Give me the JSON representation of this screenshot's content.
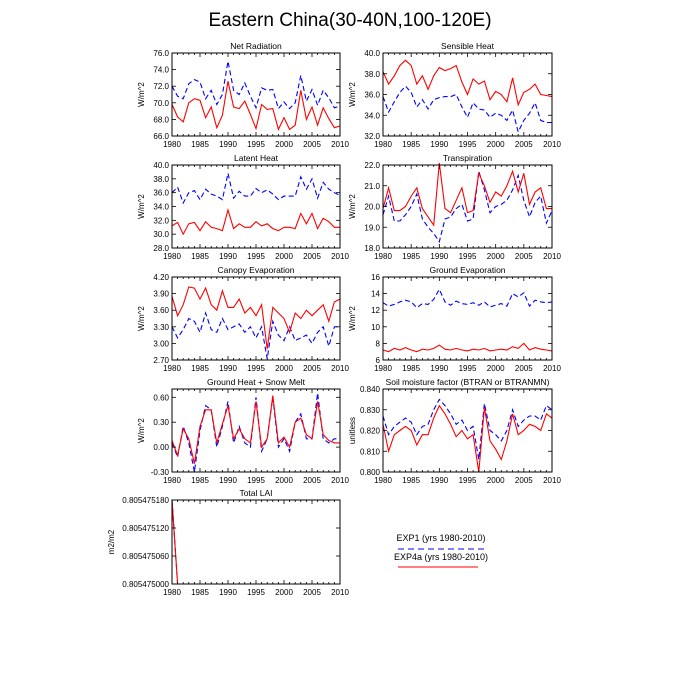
{
  "title": "Eastern China(30-40N,100-120E)",
  "colors": {
    "exp1": "#0000ff",
    "exp4a": "#ff0000",
    "axis": "#000000"
  },
  "legend": {
    "exp1_label": "EXP1 (yrs 1980-2010)",
    "exp4a_label": "EXP4a (yrs 1980-2010)",
    "exp1_style": "dashed blue",
    "exp4a_style": "solid red"
  },
  "chart_data": [
    {
      "type": "line",
      "title": "Net Radiation",
      "ylabel": "W/m^2",
      "xlim": [
        1980,
        2010
      ],
      "ylim": [
        66,
        76
      ],
      "xticks": [
        1980,
        1985,
        1990,
        1995,
        2000,
        2005,
        2010
      ],
      "yticks": [
        66,
        68,
        70,
        72,
        74,
        76
      ],
      "ytick_labels": [
        "66.0",
        "68.0",
        "70.0",
        "72.0",
        "74.0",
        "76.0"
      ],
      "x": [
        1980,
        1981,
        1982,
        1983,
        1984,
        1985,
        1986,
        1987,
        1988,
        1989,
        1990,
        1991,
        1992,
        1993,
        1994,
        1995,
        1996,
        1997,
        1998,
        1999,
        2000,
        2001,
        2002,
        2003,
        2004,
        2005,
        2006,
        2007,
        2008,
        2009,
        2010
      ],
      "series": [
        {
          "name": "EXP1",
          "values": [
            72.0,
            70.8,
            70.5,
            72.3,
            72.8,
            72.5,
            70.5,
            71.5,
            69.8,
            71.0,
            75.0,
            71.5,
            71.0,
            72.4,
            70.8,
            69.4,
            71.8,
            71.5,
            71.6,
            69.3,
            70.1,
            69.3,
            70.0,
            73.3,
            70.2,
            71.6,
            69.7,
            71.5,
            70.6,
            69.4,
            69.6
          ]
        },
        {
          "name": "EXP4a",
          "values": [
            69.8,
            68.3,
            67.7,
            70.0,
            70.5,
            70.3,
            68.2,
            69.5,
            67.0,
            68.5,
            72.6,
            69.5,
            69.3,
            70.2,
            68.6,
            66.9,
            69.8,
            69.2,
            69.3,
            66.8,
            68.2,
            66.8,
            67.3,
            71.5,
            68.0,
            69.5,
            67.3,
            69.4,
            68.1,
            67.0,
            67.2
          ]
        }
      ]
    },
    {
      "type": "line",
      "title": "Sensible Heat",
      "ylabel": "W/m^2",
      "xlim": [
        1980,
        2010
      ],
      "ylim": [
        32,
        40
      ],
      "xticks": [
        1980,
        1985,
        1990,
        1995,
        2000,
        2005,
        2010
      ],
      "yticks": [
        32,
        34,
        36,
        38,
        40
      ],
      "ytick_labels": [
        "32.0",
        "34.0",
        "36.0",
        "38.0",
        "40.0"
      ],
      "x": [
        1980,
        1981,
        1982,
        1983,
        1984,
        1985,
        1986,
        1987,
        1988,
        1989,
        1990,
        1991,
        1992,
        1993,
        1994,
        1995,
        1996,
        1997,
        1998,
        1999,
        2000,
        2001,
        2002,
        2003,
        2004,
        2005,
        2006,
        2007,
        2008,
        2009,
        2010
      ],
      "series": [
        {
          "name": "EXP1",
          "values": [
            35.8,
            34.3,
            35.3,
            36.2,
            36.8,
            36.2,
            34.8,
            35.5,
            34.6,
            35.5,
            35.7,
            35.8,
            35.8,
            36.0,
            34.8,
            33.8,
            35.2,
            34.6,
            34.5,
            33.8,
            34.2,
            34.0,
            33.5,
            34.5,
            32.4,
            33.5,
            34.2,
            35.2,
            33.5,
            33.3,
            33.3
          ]
        },
        {
          "name": "EXP4a",
          "values": [
            38.2,
            37.0,
            37.8,
            38.8,
            39.3,
            38.8,
            37.0,
            37.8,
            36.5,
            37.8,
            38.6,
            38.3,
            38.5,
            38.8,
            37.2,
            36.0,
            37.5,
            37.0,
            37.3,
            35.5,
            36.3,
            36.0,
            35.3,
            37.6,
            35.0,
            36.2,
            36.5,
            37.0,
            36.0,
            35.9,
            35.8
          ]
        }
      ]
    },
    {
      "type": "line",
      "title": "Latent Heat",
      "ylabel": "W/m^2",
      "xlim": [
        1980,
        2010
      ],
      "ylim": [
        28,
        40
      ],
      "xticks": [
        1980,
        1985,
        1990,
        1995,
        2000,
        2005,
        2010
      ],
      "yticks": [
        28,
        30,
        32,
        34,
        36,
        38,
        40
      ],
      "ytick_labels": [
        "28.0",
        "30.0",
        "32.0",
        "34.0",
        "36.0",
        "38.0",
        "40.0"
      ],
      "x": [
        1980,
        1981,
        1982,
        1983,
        1984,
        1985,
        1986,
        1987,
        1988,
        1989,
        1990,
        1991,
        1992,
        1993,
        1994,
        1995,
        1996,
        1997,
        1998,
        1999,
        2000,
        2001,
        2002,
        2003,
        2004,
        2005,
        2006,
        2007,
        2008,
        2009,
        2010
      ],
      "series": [
        {
          "name": "EXP1",
          "values": [
            36.0,
            36.8,
            34.5,
            36.0,
            36.3,
            35.0,
            36.5,
            35.8,
            35.5,
            35.0,
            38.8,
            35.2,
            36.2,
            35.5,
            35.5,
            36.6,
            36.0,
            36.4,
            35.8,
            35.0,
            35.5,
            35.5,
            35.5,
            38.3,
            36.5,
            38.0,
            35.2,
            37.5,
            36.5,
            36.0,
            35.6
          ]
        },
        {
          "name": "EXP4a",
          "values": [
            31.2,
            31.7,
            30.0,
            31.5,
            31.7,
            30.5,
            31.8,
            31.0,
            30.8,
            30.5,
            33.5,
            30.8,
            31.5,
            31.0,
            31.0,
            31.8,
            31.2,
            31.5,
            30.8,
            30.5,
            31.0,
            31.0,
            30.8,
            33.0,
            31.5,
            33.0,
            30.8,
            32.3,
            31.8,
            31.0,
            31.0
          ]
        }
      ]
    },
    {
      "type": "line",
      "title": "Transpiration",
      "ylabel": "W/m^2",
      "xlim": [
        1980,
        2010
      ],
      "ylim": [
        18,
        22
      ],
      "xticks": [
        1980,
        1985,
        1990,
        1995,
        2000,
        2005,
        2010
      ],
      "yticks": [
        18,
        19,
        20,
        21,
        22
      ],
      "ytick_labels": [
        "18.0",
        "19.0",
        "20.0",
        "21.0",
        "22.0"
      ],
      "x": [
        1980,
        1981,
        1982,
        1983,
        1984,
        1985,
        1986,
        1987,
        1988,
        1989,
        1990,
        1991,
        1992,
        1993,
        1994,
        1995,
        1996,
        1997,
        1998,
        1999,
        2000,
        2001,
        2002,
        2003,
        2004,
        2005,
        2006,
        2007,
        2008,
        2009,
        2010
      ],
      "series": [
        {
          "name": "EXP1",
          "values": [
            19.6,
            20.5,
            19.3,
            19.3,
            19.6,
            20.0,
            20.6,
            19.4,
            19.0,
            18.7,
            18.3,
            19.4,
            19.5,
            19.9,
            20.1,
            19.3,
            19.4,
            21.7,
            20.8,
            19.7,
            20.0,
            20.1,
            20.3,
            20.8,
            21.5,
            20.3,
            19.5,
            20.2,
            20.5,
            19.2,
            19.8
          ]
        },
        {
          "name": "EXP4a",
          "values": [
            19.9,
            20.9,
            19.8,
            19.8,
            20.0,
            20.5,
            20.9,
            19.9,
            19.5,
            19.1,
            22.1,
            19.9,
            19.7,
            20.3,
            20.9,
            19.7,
            19.8,
            21.6,
            21.0,
            20.2,
            20.7,
            20.5,
            21.0,
            21.7,
            20.7,
            21.6,
            20.1,
            20.7,
            20.9,
            19.9,
            19.9
          ]
        }
      ]
    },
    {
      "type": "line",
      "title": "Canopy Evaporation",
      "ylabel": "W/m^2",
      "xlim": [
        1980,
        2010
      ],
      "ylim": [
        2.7,
        4.2
      ],
      "xticks": [
        1980,
        1985,
        1990,
        1995,
        2000,
        2005,
        2010
      ],
      "yticks": [
        2.7,
        3.0,
        3.3,
        3.6,
        3.9,
        4.2
      ],
      "ytick_labels": [
        "2.70",
        "3.00",
        "3.30",
        "3.60",
        "3.90",
        "4.20"
      ],
      "x": [
        1980,
        1981,
        1982,
        1983,
        1984,
        1985,
        1986,
        1987,
        1988,
        1989,
        1990,
        1991,
        1992,
        1993,
        1994,
        1995,
        1996,
        1997,
        1998,
        1999,
        2000,
        2001,
        2002,
        2003,
        2004,
        2005,
        2006,
        2007,
        2008,
        2009,
        2010
      ],
      "series": [
        {
          "name": "EXP1",
          "values": [
            3.3,
            3.1,
            3.25,
            3.45,
            3.4,
            3.2,
            3.55,
            3.25,
            3.2,
            3.45,
            3.25,
            3.3,
            3.35,
            3.2,
            3.3,
            3.1,
            3.3,
            2.72,
            3.4,
            3.15,
            3.05,
            3.3,
            3.05,
            3.1,
            3.15,
            3.0,
            3.2,
            3.3,
            2.95,
            3.3,
            3.3
          ]
        },
        {
          "name": "EXP4a",
          "values": [
            3.85,
            3.5,
            3.7,
            4.02,
            4.0,
            3.8,
            4.0,
            3.7,
            3.6,
            3.95,
            3.65,
            3.65,
            3.8,
            3.55,
            3.65,
            3.5,
            3.7,
            2.9,
            3.65,
            3.55,
            3.45,
            3.2,
            3.55,
            3.45,
            3.6,
            3.5,
            3.6,
            3.7,
            3.4,
            3.75,
            3.8
          ]
        }
      ]
    },
    {
      "type": "line",
      "title": "Ground Evaporation",
      "ylabel": "W/m^2",
      "xlim": [
        1980,
        2010
      ],
      "ylim": [
        6,
        16
      ],
      "xticks": [
        1980,
        1985,
        1990,
        1995,
        2000,
        2005,
        2010
      ],
      "yticks": [
        6,
        8,
        10,
        12,
        14,
        16
      ],
      "ytick_labels": [
        "6",
        "8",
        "10",
        "12",
        "14",
        "16"
      ],
      "x": [
        1980,
        1981,
        1982,
        1983,
        1984,
        1985,
        1986,
        1987,
        1988,
        1989,
        1990,
        1991,
        1992,
        1993,
        1994,
        1995,
        1996,
        1997,
        1998,
        1999,
        2000,
        2001,
        2002,
        2003,
        2004,
        2005,
        2006,
        2007,
        2008,
        2009,
        2010
      ],
      "series": [
        {
          "name": "EXP1",
          "values": [
            12.9,
            12.5,
            12.7,
            13.0,
            13.2,
            13.0,
            12.3,
            12.8,
            12.7,
            13.3,
            14.5,
            13.0,
            12.6,
            13.1,
            12.8,
            12.7,
            12.9,
            12.6,
            13.0,
            12.4,
            12.6,
            12.8,
            12.5,
            14.0,
            13.6,
            14.1,
            12.5,
            13.2,
            13.0,
            12.9,
            13.0
          ]
        },
        {
          "name": "EXP4a",
          "values": [
            7.2,
            7.0,
            7.4,
            7.2,
            7.5,
            7.2,
            7.0,
            7.3,
            7.2,
            7.4,
            7.8,
            7.3,
            7.2,
            7.4,
            7.2,
            7.1,
            7.3,
            7.2,
            7.4,
            7.1,
            7.2,
            7.3,
            7.2,
            7.6,
            7.4,
            8.0,
            7.2,
            7.5,
            7.3,
            7.2,
            7.1
          ]
        }
      ]
    },
    {
      "type": "line",
      "title": "Ground Heat + Snow Melt",
      "ylabel": "W/m^2",
      "xlim": [
        1980,
        2010
      ],
      "ylim": [
        -0.3,
        0.7
      ],
      "xticks": [
        1980,
        1985,
        1990,
        1995,
        2000,
        2005,
        2010
      ],
      "yticks": [
        -0.3,
        0.0,
        0.3,
        0.6
      ],
      "ytick_labels": [
        "-0.30",
        "0.00",
        "0.30",
        "0.60"
      ],
      "x": [
        1980,
        1981,
        1982,
        1983,
        1984,
        1985,
        1986,
        1987,
        1988,
        1989,
        1990,
        1991,
        1992,
        1993,
        1994,
        1995,
        1996,
        1997,
        1998,
        1999,
        2000,
        2001,
        2002,
        2003,
        2004,
        2005,
        2006,
        2007,
        2008,
        2009,
        2010
      ],
      "series": [
        {
          "name": "EXP1",
          "values": [
            0.05,
            -0.12,
            0.25,
            0.05,
            -0.3,
            0.2,
            0.5,
            0.45,
            0.0,
            0.25,
            0.55,
            0.05,
            0.25,
            0.05,
            0.0,
            0.6,
            -0.05,
            0.1,
            0.6,
            0.0,
            0.1,
            -0.05,
            0.3,
            0.4,
            0.1,
            0.1,
            0.65,
            0.1,
            0.05,
            0.1,
            0.1
          ]
        },
        {
          "name": "EXP4a",
          "values": [
            0.08,
            -0.1,
            0.22,
            0.1,
            -0.2,
            0.25,
            0.45,
            0.45,
            0.05,
            0.28,
            0.5,
            0.1,
            0.22,
            0.1,
            0.05,
            0.55,
            0.0,
            0.1,
            0.62,
            0.05,
            0.12,
            0.0,
            0.3,
            0.35,
            0.15,
            0.1,
            0.55,
            0.15,
            0.08,
            0.05,
            0.05
          ]
        }
      ]
    },
    {
      "type": "line",
      "title": "Soil moisture factor (BTRAN or BTRANMN)",
      "ylabel": "unitless",
      "xlim": [
        1980,
        2010
      ],
      "ylim": [
        0.8,
        0.84
      ],
      "xticks": [
        1980,
        1985,
        1990,
        1995,
        2000,
        2005,
        2010
      ],
      "yticks": [
        0.8,
        0.81,
        0.82,
        0.83,
        0.84
      ],
      "ytick_labels": [
        "0.800",
        "0.810",
        "0.820",
        "0.830",
        "0.840"
      ],
      "x": [
        1980,
        1981,
        1982,
        1983,
        1984,
        1985,
        1986,
        1987,
        1988,
        1989,
        1990,
        1991,
        1992,
        1993,
        1994,
        1995,
        1996,
        1997,
        1998,
        1999,
        2000,
        2001,
        2002,
        2003,
        2004,
        2005,
        2006,
        2007,
        2008,
        2009,
        2010
      ],
      "series": [
        {
          "name": "EXP1",
          "values": [
            0.827,
            0.818,
            0.822,
            0.824,
            0.826,
            0.824,
            0.818,
            0.822,
            0.823,
            0.83,
            0.835,
            0.832,
            0.828,
            0.823,
            0.825,
            0.82,
            0.822,
            0.806,
            0.833,
            0.82,
            0.818,
            0.815,
            0.82,
            0.83,
            0.822,
            0.825,
            0.827,
            0.827,
            0.825,
            0.832,
            0.83
          ]
        },
        {
          "name": "EXP4a",
          "values": [
            0.823,
            0.81,
            0.818,
            0.82,
            0.822,
            0.82,
            0.813,
            0.818,
            0.818,
            0.826,
            0.832,
            0.828,
            0.823,
            0.817,
            0.82,
            0.816,
            0.818,
            0.8,
            0.831,
            0.815,
            0.811,
            0.806,
            0.815,
            0.828,
            0.818,
            0.82,
            0.823,
            0.822,
            0.82,
            0.828,
            0.826
          ]
        }
      ]
    },
    {
      "type": "line",
      "title": "Total LAI",
      "ylabel": "m2/m2",
      "xlim": [
        1980,
        2010
      ],
      "ylim": [
        0.805475,
        0.80547518
      ],
      "xticks": [
        1980,
        1985,
        1990,
        1995,
        2000,
        2005,
        2010
      ],
      "yticks": [
        0.805475,
        0.80547506,
        0.80547512,
        0.80547518
      ],
      "ytick_labels": [
        "0.805475000",
        "0.805475060",
        "0.805475120",
        "0.805475180"
      ],
      "x": [
        1980,
        1981,
        2010
      ],
      "series": [
        {
          "name": "EXP1",
          "values": [
            0.80547518,
            0.805475,
            0.805475
          ]
        },
        {
          "name": "EXP4a",
          "values": [
            0.80547518,
            0.805475,
            0.805475
          ]
        }
      ]
    }
  ]
}
